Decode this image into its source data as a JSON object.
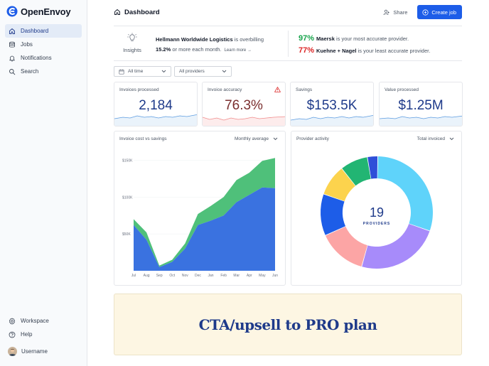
{
  "app": {
    "name": "OpenEnvoy"
  },
  "sidebar": {
    "items": [
      {
        "label": "Dashboard",
        "icon": "home-icon",
        "active": true
      },
      {
        "label": "Jobs",
        "icon": "database-icon"
      },
      {
        "label": "Notifications",
        "icon": "bell-icon"
      },
      {
        "label": "Search",
        "icon": "search-icon"
      }
    ],
    "bottom": [
      {
        "label": "Workspace",
        "icon": "gear-icon"
      },
      {
        "label": "Help",
        "icon": "help-icon"
      }
    ],
    "user": {
      "name": "Username"
    }
  },
  "header": {
    "title": "Dashboard",
    "share_label": "Share",
    "create_label": "Create job"
  },
  "insights": {
    "label": "Insights",
    "provider": "Hellmann Worldwide Logistics",
    "message_a": " is overbilling",
    "percent": "15.2%",
    "message_b": " or more each month.",
    "learn_more": "Learn more",
    "best_pct": "97%",
    "best_provider": "Maersk",
    "best_text": " is your most accurate provider.",
    "worst_pct": "77%",
    "worst_provider": "Kuehne + Nagel",
    "worst_text": " is your least accurate provider."
  },
  "filters": {
    "time": "All time",
    "providers": "All providers"
  },
  "kpis": [
    {
      "label": "Invoices processed",
      "value": "2,184"
    },
    {
      "label": "Invoice accuracy",
      "value": "76.3%",
      "warning": true
    },
    {
      "label": "Savings",
      "value": "$153.5K"
    },
    {
      "label": "Value processed",
      "value": "$1.25M"
    }
  ],
  "colors": {
    "accent": "#1d5de8",
    "navy": "#1e3a8a",
    "area_cost": "#3a72e0",
    "area_savings": "#4fc07a",
    "good": "#16a34a",
    "bad": "#dc2626"
  },
  "cost_panel": {
    "title": "Invoice cost vs savings",
    "control": "Monthly average"
  },
  "provider_panel": {
    "title": "Provider activity",
    "control": "Total invoiced",
    "center_value": "19",
    "center_label": "PROVIDERS"
  },
  "cta": {
    "text": "CTA/upsell to PRO plan"
  },
  "chart_data": [
    {
      "type": "area",
      "title": "Invoice cost vs savings",
      "categories": [
        "Jul",
        "Aug",
        "Sep",
        "Oct",
        "Nov",
        "Dec",
        "Jan",
        "Feb",
        "Mar",
        "Apr",
        "May",
        "Jun"
      ],
      "y_ticks": [
        "$50K",
        "$100K",
        "$150K"
      ],
      "ylim": [
        0,
        160000
      ],
      "stacked": true,
      "series": [
        {
          "values": [
            62000,
            42000,
            5000,
            12000,
            30000,
            62000,
            68000,
            75000,
            93000,
            103000,
            113000,
            112000
          ],
          "color": "#3a72e0"
        },
        {
          "values": [
            8000,
            10000,
            2000,
            3000,
            7000,
            15000,
            20000,
            25000,
            30000,
            30000,
            36000,
            41000
          ],
          "color": "#4fc07a"
        }
      ]
    },
    {
      "type": "pie",
      "title": "Provider activity",
      "center_value": "19",
      "center_label": "PROVIDERS",
      "slices": [
        {
          "value": 30,
          "color": "#5fd3fa"
        },
        {
          "value": 24,
          "color": "#a78bfa"
        },
        {
          "value": 14,
          "color": "#fca5a5"
        },
        {
          "value": 12,
          "color": "#1d5de8"
        },
        {
          "value": 9,
          "color": "#fcd34d"
        },
        {
          "value": 8,
          "color": "#22b573"
        },
        {
          "value": 3,
          "color": "#2f4fd8"
        }
      ]
    }
  ]
}
